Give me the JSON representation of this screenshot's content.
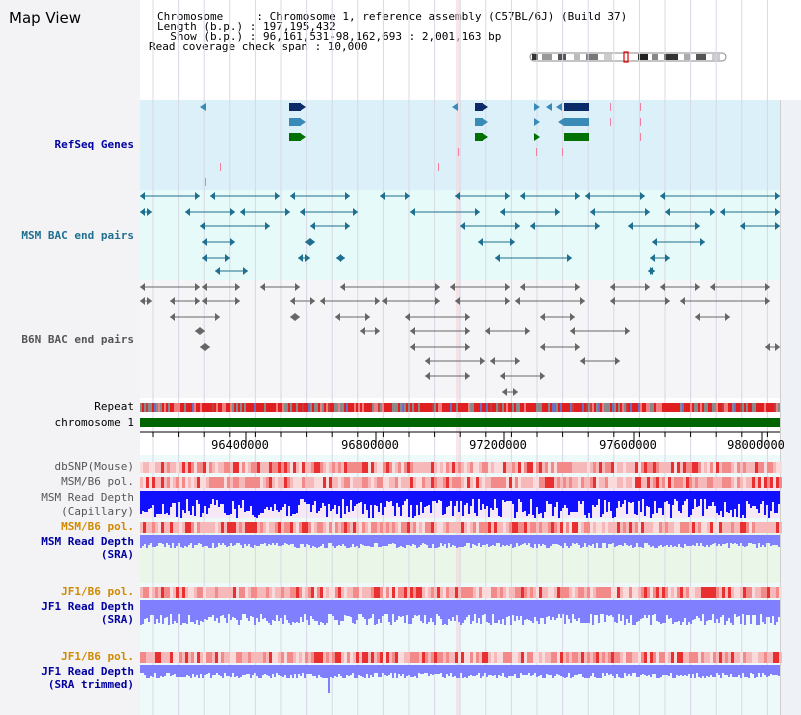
{
  "header": {
    "title": "Map View",
    "info_lines": [
      "Chromosome     : Chromosome 1, reference assembly (C57BL/6J) (Build 37)",
      "Length (b.p.) : 197,195,432",
      "  Show (b.p.) : 96,161,531-98,162,693 : 2,001,163 bp",
      "Read coverage check span : 10,000"
    ]
  },
  "tracks": {
    "refseq": "RefSeq Genes",
    "msm_bac": "MSM BAC end pairs",
    "b6n_bac": "B6N BAC end pairs",
    "repeat": "Repeat",
    "chromosome": "chromosome 1",
    "dbsnp": "dbSNP(Mouse)",
    "msm_b6_pol": "MSM/B6 pol.",
    "msm_read_depth_cap_1": "MSM Read Depth",
    "msm_read_depth_cap_2": "(Capillary)",
    "msm_b6_pol_2": "MSM/B6 pol.",
    "msm_read_depth_sra_1": "MSM Read Depth",
    "msm_read_depth_sra_2": "(SRA)",
    "jf1_b6_pol": "JF1/B6 pol.",
    "jf1_read_depth_1": "JF1 Read Depth",
    "jf1_read_depth_2": "(SRA)",
    "jf1_b6_pol_2": "JF1/B6 pol.",
    "jf1_trim_1": "JF1 Read Depth",
    "jf1_trim_2": "(SRA trimmed)"
  },
  "axis": {
    "ticks": [
      "96400000",
      "96800000",
      "97200000",
      "97600000",
      "98000000"
    ]
  },
  "colors": {
    "refseq_bg": "#dcf0fa",
    "bac_bg": "#e6fafa",
    "gene_dark": "#0a2a6a",
    "gene_mid": "#3a8ab8",
    "gene_green": "#007000",
    "msm_bac": "#1f6f8f",
    "b6n_bac": "#666666",
    "chromosome": "#006400",
    "pol_red": "#e82020",
    "depth_blue": "#1010ff",
    "depth_light": "#8080ff",
    "gold": "#d08a00"
  }
}
